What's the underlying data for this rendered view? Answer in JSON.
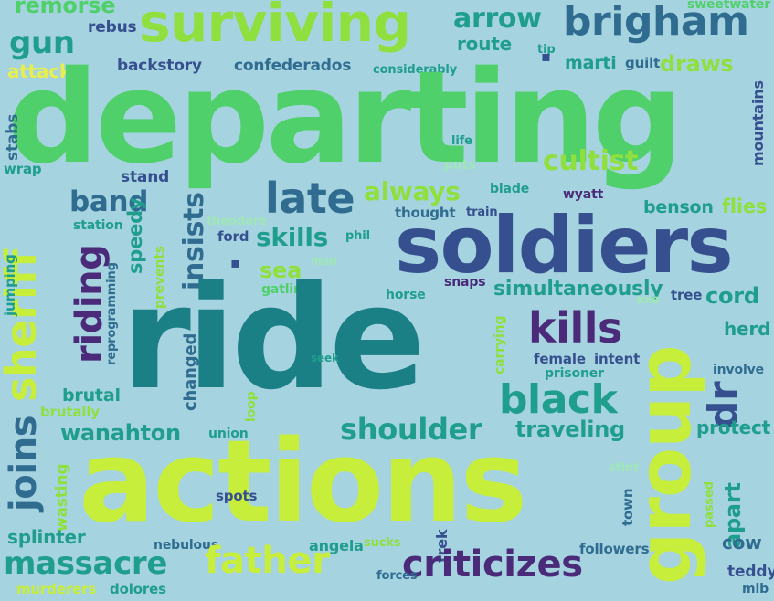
{
  "words": {
    "departing": "departing",
    "ride": "ride",
    "actions": "actions",
    "soldiers": "soldiers",
    "surviving": "surviving",
    "brigham": "brigham",
    "group": "group",
    "sheriff": "sheriff",
    "joins": "joins",
    "riding": "riding",
    "late": "late",
    "band": "band",
    "kills": "kills",
    "black": "black",
    "criticizes": "criticizes",
    "massacre": "massacre",
    "father": "father",
    "shoulder": "shoulder",
    "always": "always",
    "insists": "insists",
    "skills": "skills",
    "dr": "dr",
    "apart": "apart",
    "cultist": "cultist",
    "simultaneously": "simultaneously",
    "traveling": "traveling",
    "wanahton": "wanahton",
    "cord": "cord",
    "arrow": "arrow",
    "gun": "gun",
    "remorse": "remorse",
    "rebus": "rebus",
    "attacks": "attacks",
    "backstory": "backstory",
    "confederados": "confederados",
    "considerably": "considerably",
    "route": "route",
    "tip": "tip",
    "marti": "marti",
    "guilt": "guilt",
    "draws": "draws",
    "sweetwater": "sweetwater",
    "mountains": "mountains",
    "stabs": "stabs",
    "wrap": "wrap",
    "stand": "stand",
    "station": "station",
    "life": "life",
    "puts": "puts",
    "blade": "blade",
    "wyatt": "wyatt",
    "benson": "benson",
    "flies": "flies",
    "theodore": "theodore",
    "thought": "thought",
    "train": "train",
    "ford": "ford",
    "phil": "phil",
    "sea": "sea",
    "man": "man",
    "gatling": "gatling",
    "speedy": "speedy",
    "prevents": "prevents",
    "jumping": "jumping",
    "reprogramming": "reprogramming",
    "horse": "horse",
    "snaps": "snaps",
    "axe": "axe",
    "tree": "tree",
    "herd": "herd",
    "seek": "seek",
    "carrying": "carrying",
    "female": "female",
    "intent": "intent",
    "prisoner": "prisoner",
    "involve": "involve",
    "changed": "changed",
    "brutal": "brutal",
    "brutally": "brutally",
    "loop": "loop",
    "protect": "protect",
    "union": "union",
    "wasting": "wasting",
    "spots": "spots",
    "stint": "stint",
    "town": "town",
    "passed": "passed",
    "splinter": "splinter",
    "nebulous": "nebulous",
    "angela": "angela",
    "trek": "trek",
    "followers": "followers",
    "cow": "cow",
    "teddy": "teddy",
    "murderers": "murderers",
    "dolores": "dolores",
    "forces": "forces",
    "mib": "mib",
    "sucks": "sucks"
  }
}
